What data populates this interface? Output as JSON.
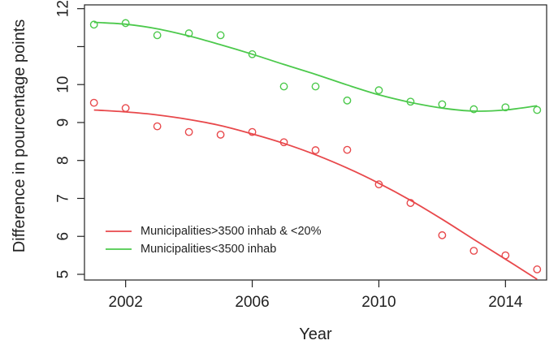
{
  "chart_data": {
    "type": "scatter",
    "title": "",
    "xlabel": "Year",
    "ylabel": "Difference in pourcentage points",
    "xlim": [
      2000.7,
      2015.3
    ],
    "ylim": [
      4.85,
      12.1
    ],
    "xticks": [
      2002,
      2006,
      2010,
      2014
    ],
    "yticks": [
      5,
      6,
      7,
      8,
      9,
      10,
      12
    ],
    "legend_position": "bottom-left",
    "series": [
      {
        "name": "Municipalities>3500 inhab & <20%",
        "color": "#e8484b",
        "x": [
          2001,
          2002,
          2003,
          2004,
          2005,
          2006,
          2007,
          2008,
          2009,
          2010,
          2011,
          2012,
          2013,
          2014,
          2015
        ],
        "points": [
          9.52,
          9.38,
          8.9,
          8.75,
          8.68,
          8.75,
          8.48,
          8.27,
          8.28,
          7.37,
          6.88,
          6.03,
          5.62,
          5.5,
          5.13
        ],
        "fit": [
          9.33,
          9.28,
          9.2,
          9.08,
          8.92,
          8.7,
          8.45,
          8.15,
          7.8,
          7.4,
          6.95,
          6.45,
          5.92,
          5.4,
          4.87
        ]
      },
      {
        "name": "Municipalities<3500 inhab",
        "color": "#4cc94c",
        "x": [
          2001,
          2002,
          2003,
          2004,
          2005,
          2006,
          2007,
          2008,
          2009,
          2010,
          2011,
          2012,
          2013,
          2014,
          2015
        ],
        "points": [
          11.58,
          11.62,
          11.3,
          11.35,
          11.3,
          10.8,
          9.95,
          9.95,
          9.58,
          9.85,
          9.55,
          9.48,
          9.35,
          9.4,
          9.33
        ],
        "fit": [
          11.64,
          11.59,
          11.47,
          11.28,
          11.05,
          10.8,
          10.53,
          10.27,
          9.99,
          9.73,
          9.53,
          9.38,
          9.3,
          9.33,
          9.44
        ]
      }
    ]
  }
}
